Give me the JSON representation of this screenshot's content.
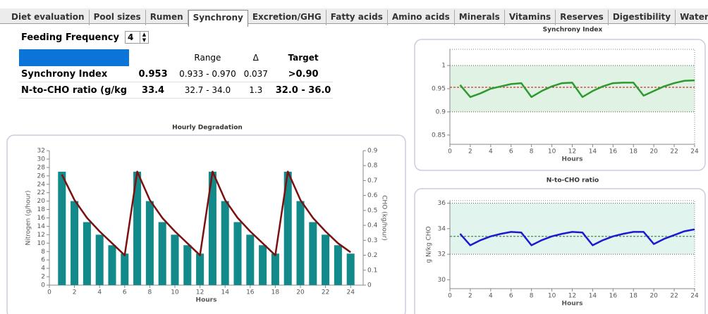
{
  "tabs": [
    "Diet evaluation",
    "Pool sizes",
    "Rumen",
    "Synchrony",
    "Excretion/GHG",
    "Fatty acids",
    "Amino acids",
    "Minerals",
    "Vitamins",
    "Reserves",
    "Digestibility",
    "Water"
  ],
  "active_tab": 3,
  "controls": {
    "label": "Feeding Frequency",
    "value": "4"
  },
  "table": {
    "header": [
      "Range",
      "Δ",
      "Target"
    ],
    "rows": [
      [
        "Synchrony Index",
        "0.953",
        "0.933 - 0.970",
        "0.037",
        ">0.90"
      ],
      [
        "N-to-CHO ratio (g/kg",
        "33.4",
        "32.7 - 34.0",
        "1.3",
        "32.0 - 36.0"
      ]
    ]
  },
  "chart_data": [
    {
      "type": "bar",
      "title": "Hourly Degradation",
      "x_label": "Hours",
      "y_label": "Nitrogen (g/hour)",
      "y2_label": "CHO (kg/hour)",
      "x": [
        1,
        2,
        3,
        4,
        5,
        6,
        7,
        8,
        9,
        10,
        11,
        12,
        13,
        14,
        15,
        16,
        17,
        18,
        19,
        20,
        21,
        22,
        23,
        24
      ],
      "series": [
        {
          "color": "#138a8a",
          "values": [
            27,
            20,
            15,
            12,
            9.5,
            7.5,
            27,
            20,
            15,
            12,
            9.5,
            7.5,
            27,
            20,
            15,
            12,
            9.5,
            7.5,
            27,
            20,
            15,
            12,
            9.5,
            7.5
          ]
        },
        {
          "color": "#7a1010",
          "axis": "y2",
          "values": [
            0.74,
            0.57,
            0.45,
            0.36,
            0.28,
            0.2,
            0.76,
            0.57,
            0.45,
            0.36,
            0.28,
            0.2,
            0.76,
            0.57,
            0.45,
            0.36,
            0.28,
            0.2,
            0.76,
            0.57,
            0.45,
            0.36,
            0.28,
            0.22
          ]
        }
      ],
      "xlim": [
        0,
        25
      ],
      "xticks": [
        0,
        2,
        4,
        6,
        8,
        10,
        12,
        14,
        16,
        18,
        20,
        22,
        24
      ],
      "ylim": [
        0,
        32
      ],
      "yticks": [
        0,
        2,
        4,
        6,
        8,
        10,
        12,
        14,
        16,
        18,
        20,
        22,
        24,
        26,
        28,
        30,
        32
      ],
      "y2lim": [
        0,
        0.9
      ],
      "y2ticks": [
        0,
        0.1,
        0.2,
        0.3,
        0.4,
        0.5,
        0.6,
        0.7,
        0.8,
        0.9
      ]
    },
    {
      "type": "line",
      "title": "Synchrony Index",
      "x_label": "Hours",
      "x": [
        1,
        2,
        3,
        4,
        5,
        6,
        7,
        8,
        9,
        10,
        11,
        12,
        13,
        14,
        15,
        16,
        17,
        18,
        19,
        20,
        21,
        22,
        23,
        24
      ],
      "series": [
        {
          "color": "#2e9a2e",
          "values": [
            0.958,
            0.932,
            0.94,
            0.95,
            0.955,
            0.96,
            0.962,
            0.932,
            0.945,
            0.955,
            0.962,
            0.963,
            0.932,
            0.945,
            0.955,
            0.962,
            0.963,
            0.963,
            0.935,
            0.945,
            0.955,
            0.962,
            0.967,
            0.968
          ]
        }
      ],
      "xlim": [
        0,
        24
      ],
      "xticks": [
        0,
        2,
        4,
        6,
        8,
        10,
        12,
        14,
        16,
        18,
        20,
        22,
        24
      ],
      "ylim": [
        0.83,
        1.035
      ],
      "yticks": [
        0.85,
        0.9,
        0.95,
        1
      ],
      "target_band": [
        0.9,
        1
      ],
      "band_color": "#dff2e4",
      "mean": 0.953,
      "mean_color": "#d00000"
    },
    {
      "type": "line",
      "title": "N-to-CHO ratio",
      "x_label": "Hours",
      "y_label": "g N/kg CHO",
      "x": [
        1,
        2,
        3,
        4,
        5,
        6,
        7,
        8,
        9,
        10,
        11,
        12,
        13,
        14,
        15,
        16,
        17,
        18,
        19,
        20,
        21,
        22,
        23,
        24
      ],
      "series": [
        {
          "color": "#1a1ad0",
          "values": [
            33.6,
            32.7,
            33.1,
            33.4,
            33.6,
            33.75,
            33.7,
            32.7,
            33.1,
            33.4,
            33.6,
            33.75,
            33.7,
            32.7,
            33.1,
            33.4,
            33.6,
            33.75,
            33.75,
            32.8,
            33.2,
            33.5,
            33.8,
            33.95
          ]
        }
      ],
      "xlim": [
        0,
        24
      ],
      "xticks": [
        0,
        2,
        4,
        6,
        8,
        10,
        12,
        14,
        16,
        18,
        20,
        22,
        24
      ],
      "ylim": [
        29.3,
        36.2
      ],
      "yticks": [
        30,
        32,
        34,
        36
      ],
      "target_band": [
        32,
        36
      ],
      "band_color": "#e2f4ee",
      "mean": 33.4,
      "mean_color": "#2a6a2a"
    }
  ]
}
